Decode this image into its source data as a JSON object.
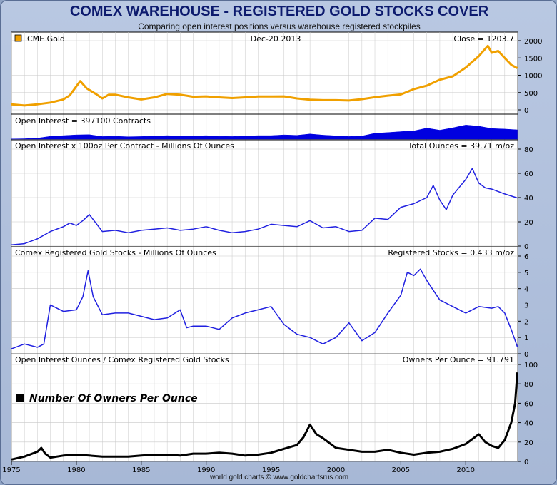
{
  "header": {
    "title": "COMEX WAREHOUSE - REGISTERED GOLD STOCKS COVER",
    "subtitle": "Comparing open interest positions versus warehouse registered stockpiles"
  },
  "footer": {
    "credit": "world gold charts © www.goldchartsrus.com"
  },
  "colors": {
    "gold": "#f0a000",
    "open_interest": "#0000e0",
    "ounces": "#2020e0",
    "owners": "#000000",
    "grid": "#c8c8c8",
    "panel_bg": "#ffffff"
  },
  "chart_data": [
    {
      "type": "line",
      "legend": "CME Gold",
      "date_label": "Dec-20  2013",
      "last_label": "Close = 1203.7",
      "ylim": [
        0,
        2000
      ],
      "yticks": [
        0,
        500,
        1000,
        1500,
        2000
      ],
      "x": [
        1975,
        1976,
        1977,
        1978,
        1979,
        1979.5,
        1980,
        1980.3,
        1980.8,
        1981.5,
        1982,
        1982.5,
        1983,
        1984,
        1985,
        1986,
        1987,
        1988,
        1989,
        1990,
        1991,
        1992,
        1993,
        1994,
        1995,
        1996,
        1997,
        1998,
        1999,
        2000,
        2001,
        2002,
        2003,
        2004,
        2005,
        2006,
        2007,
        2008,
        2009,
        2010,
        2011,
        2011.7,
        2012,
        2012.5,
        2013,
        2013.5,
        2013.97
      ],
      "y": [
        160,
        125,
        160,
        210,
        300,
        420,
        680,
        830,
        620,
        460,
        330,
        440,
        440,
        360,
        300,
        360,
        460,
        440,
        380,
        390,
        360,
        340,
        360,
        385,
        385,
        390,
        330,
        295,
        280,
        280,
        270,
        310,
        365,
        410,
        445,
        600,
        700,
        870,
        970,
        1220,
        1550,
        1850,
        1650,
        1700,
        1500,
        1300,
        1204
      ]
    },
    {
      "type": "area",
      "label": "Open Interest = 397100 Contracts",
      "ylim": [
        0,
        700000
      ],
      "x": [
        1975,
        1976,
        1977,
        1978,
        1979,
        1980,
        1981,
        1982,
        1983,
        1984,
        1985,
        1986,
        1987,
        1988,
        1989,
        1990,
        1991,
        1992,
        1993,
        1994,
        1995,
        1996,
        1997,
        1998,
        1999,
        2000,
        2001,
        2002,
        2003,
        2004,
        2005,
        2006,
        2007,
        2008,
        2009,
        2010,
        2011,
        2012,
        2013,
        2013.97
      ],
      "y": [
        5000,
        15000,
        40000,
        120000,
        150000,
        180000,
        190000,
        110000,
        120000,
        100000,
        110000,
        130000,
        150000,
        130000,
        130000,
        150000,
        120000,
        110000,
        130000,
        150000,
        150000,
        180000,
        160000,
        220000,
        170000,
        140000,
        110000,
        130000,
        250000,
        280000,
        320000,
        350000,
        470000,
        380000,
        480000,
        600000,
        550000,
        450000,
        430000,
        397100
      ]
    },
    {
      "type": "line",
      "label": "Open Interest x 100oz Per Contract  -  Millions Of Ounces",
      "last_label": "Total Ounces = 39.71 m/oz",
      "ylim": [
        0,
        80
      ],
      "yticks": [
        0,
        20,
        40,
        60,
        80
      ],
      "x": [
        1975,
        1976,
        1977,
        1978,
        1979,
        1979.5,
        1980,
        1980.5,
        1981,
        1981.5,
        1982,
        1983,
        1984,
        1985,
        1986,
        1987,
        1988,
        1989,
        1990,
        1991,
        1992,
        1993,
        1994,
        1995,
        1996,
        1997,
        1998,
        1999,
        2000,
        2001,
        2002,
        2003,
        2004,
        2005,
        2006,
        2007,
        2007.5,
        2008,
        2008.5,
        2009,
        2010,
        2010.5,
        2011,
        2011.5,
        2012,
        2013,
        2013.97
      ],
      "y": [
        1,
        2,
        6,
        12,
        16,
        19,
        17,
        21,
        26,
        19,
        12,
        13,
        11,
        13,
        14,
        15,
        13,
        14,
        16,
        13,
        11,
        12,
        14,
        18,
        17,
        16,
        21,
        15,
        16,
        12,
        13,
        23,
        22,
        32,
        35,
        40,
        50,
        38,
        30,
        42,
        55,
        64,
        52,
        48,
        47,
        43,
        39.71
      ]
    },
    {
      "type": "line",
      "label": "Comex Registered Gold Stocks  -  Millions Of Ounces",
      "last_label": "Registered Stocks = 0.433 m/oz",
      "ylim": [
        0,
        6
      ],
      "yticks": [
        0,
        1,
        2,
        3,
        4,
        5,
        6
      ],
      "x": [
        1975,
        1976,
        1977,
        1977.5,
        1978,
        1978.5,
        1979,
        1980,
        1980.5,
        1980.9,
        1981.3,
        1982,
        1983,
        1984,
        1985,
        1986,
        1987,
        1988,
        1988.5,
        1989,
        1990,
        1991,
        1992,
        1993,
        1994,
        1995,
        1996,
        1997,
        1998,
        1999,
        2000,
        2001,
        2002,
        2003,
        2004,
        2005,
        2005.5,
        2006,
        2006.5,
        2007,
        2008,
        2009,
        2010,
        2011,
        2012,
        2012.5,
        2013,
        2013.5,
        2013.97
      ],
      "y": [
        0.3,
        0.6,
        0.4,
        0.6,
        3,
        2.8,
        2.6,
        2.7,
        3.5,
        5.1,
        3.5,
        2.4,
        2.5,
        2.5,
        2.3,
        2.1,
        2.2,
        2.7,
        1.6,
        1.7,
        1.7,
        1.5,
        2.2,
        2.5,
        2.7,
        2.9,
        1.8,
        1.2,
        1.0,
        0.6,
        1.0,
        1.9,
        0.8,
        1.3,
        2.5,
        3.6,
        5.0,
        4.8,
        5.2,
        4.5,
        3.3,
        2.9,
        2.5,
        2.9,
        2.8,
        2.9,
        2.5,
        1.5,
        0.433
      ]
    },
    {
      "type": "line",
      "label": "Open Interest Ounces / Comex Registered Gold Stocks",
      "last_label": "Owners Per Ounce = 91.791",
      "annotation": "Number Of Owners Per Ounce",
      "ylim": [
        0,
        100
      ],
      "yticks": [
        0,
        20,
        40,
        60,
        80,
        100
      ],
      "x": [
        1975,
        1976,
        1977,
        1977.3,
        1977.6,
        1978,
        1979,
        1980,
        1981,
        1982,
        1983,
        1984,
        1985,
        1986,
        1987,
        1988,
        1989,
        1990,
        1991,
        1992,
        1993,
        1994,
        1995,
        1996,
        1997,
        1997.5,
        1998,
        1998.5,
        1999,
        2000,
        2001,
        2002,
        2003,
        2004,
        2005,
        2006,
        2007,
        2008,
        2009,
        2010,
        2011,
        2011.5,
        2012,
        2012.5,
        2013,
        2013.5,
        2013.8,
        2013.97
      ],
      "y": [
        2,
        5,
        10,
        14,
        8,
        4,
        6,
        7,
        6,
        5,
        5,
        5,
        6,
        7,
        7,
        6,
        8,
        8,
        9,
        8,
        6,
        7,
        9,
        13,
        17,
        25,
        38,
        28,
        24,
        14,
        12,
        10,
        10,
        12,
        9,
        7,
        9,
        10,
        13,
        18,
        28,
        20,
        16,
        14,
        22,
        40,
        60,
        91.8
      ]
    }
  ],
  "x_axis": {
    "ticks": [
      "1975",
      "1980",
      "1985",
      "1990",
      "1995",
      "2000",
      "2005",
      "2010"
    ]
  }
}
